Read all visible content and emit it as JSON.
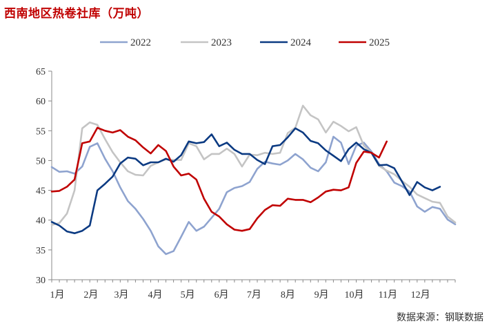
{
  "chart_data": {
    "type": "line",
    "title": "西南地区热卷社库（万吨）",
    "xlabel": "",
    "ylabel": "",
    "ylim": [
      30,
      65
    ],
    "yticks": [
      30,
      35,
      40,
      45,
      50,
      55,
      60,
      65
    ],
    "xlim": [
      0,
      53
    ],
    "x_ticks": [
      {
        "label": "1月",
        "week": 0
      },
      {
        "label": "2月",
        "week": 4.43
      },
      {
        "label": "3月",
        "week": 8.43
      },
      {
        "label": "4月",
        "week": 12.86
      },
      {
        "label": "5月",
        "week": 17.14
      },
      {
        "label": "6月",
        "week": 21.57
      },
      {
        "label": "7月",
        "week": 25.86
      },
      {
        "label": "8月",
        "week": 30.29
      },
      {
        "label": "9月",
        "week": 34.71
      },
      {
        "label": "10月",
        "week": 39.0
      },
      {
        "label": "11月",
        "week": 43.43
      },
      {
        "label": "12月",
        "week": 47.71
      }
    ],
    "legend_position": "top",
    "grid": false,
    "series": [
      {
        "name": "2022",
        "color": "#8ea3cf",
        "values": [
          48.9,
          48.1,
          48.2,
          47.8,
          49.0,
          52.3,
          52.9,
          50.3,
          48.2,
          45.5,
          43.2,
          41.9,
          40.2,
          38.2,
          35.6,
          34.3,
          34.8,
          37.2,
          39.7,
          38.2,
          38.9,
          40.4,
          41.9,
          44.7,
          45.4,
          45.7,
          46.4,
          48.6,
          49.8,
          49.5,
          49.3,
          50.0,
          51.1,
          50.2,
          48.8,
          48.2,
          49.7,
          54.0,
          53.0,
          49.4,
          52.5,
          53.0,
          51.5,
          49.4,
          48.2,
          46.3,
          45.7,
          44.8,
          42.3,
          41.4,
          42.2,
          41.9,
          40.1,
          39.3
        ]
      },
      {
        "name": "2023",
        "color": "#c4c4c4",
        "values": [
          39.2,
          39.5,
          41.1,
          45.0,
          55.4,
          56.4,
          56.0,
          53.6,
          51.4,
          49.7,
          48.2,
          47.6,
          47.5,
          49.1,
          49.7,
          50.2,
          50.1,
          50.1,
          52.9,
          52.4,
          50.2,
          51.1,
          51.1,
          52.0,
          51.1,
          49.0,
          51.0,
          50.9,
          51.3,
          51.1,
          51.3,
          54.6,
          55.5,
          59.2,
          57.6,
          56.9,
          54.7,
          56.5,
          55.8,
          54.9,
          55.6,
          52.5,
          51.3,
          49.1,
          48.3,
          47.7,
          46.6,
          45.6,
          44.3,
          43.7,
          43.1,
          42.9,
          40.6,
          39.6
        ]
      },
      {
        "name": "2024",
        "color": "#0b3a82",
        "values": [
          39.7,
          39.1,
          38.1,
          37.8,
          38.2,
          39.1,
          45.0,
          46.1,
          47.3,
          49.5,
          50.5,
          50.3,
          49.2,
          49.7,
          49.7,
          50.3,
          49.8,
          50.9,
          53.2,
          52.9,
          53.1,
          54.4,
          52.4,
          53.0,
          51.8,
          51.1,
          51.1,
          50.1,
          49.4,
          52.4,
          52.6,
          53.9,
          55.4,
          54.7,
          53.3,
          52.9,
          51.7,
          50.8,
          49.9,
          51.9,
          53.0,
          51.9,
          51.3,
          49.2,
          49.3,
          48.7,
          46.5,
          44.2,
          46.4,
          45.5,
          45.0,
          45.6
        ]
      },
      {
        "name": "2025",
        "color": "#c00000",
        "values": [
          44.8,
          44.9,
          45.6,
          46.8,
          52.9,
          53.2,
          55.5,
          55.0,
          54.7,
          55.1,
          54.0,
          53.4,
          52.2,
          51.2,
          52.6,
          51.6,
          49.0,
          47.5,
          47.8,
          46.8,
          43.6,
          41.4,
          40.6,
          39.3,
          38.4,
          38.2,
          38.5,
          40.3,
          41.7,
          42.5,
          42.4,
          43.6,
          43.4,
          43.4,
          43.0,
          43.8,
          44.8,
          45.1,
          45.0,
          45.5,
          49.6,
          51.5,
          51.3,
          50.5,
          53.2
        ]
      }
    ]
  },
  "footer": {
    "source": "数据来源：钢联数据"
  }
}
